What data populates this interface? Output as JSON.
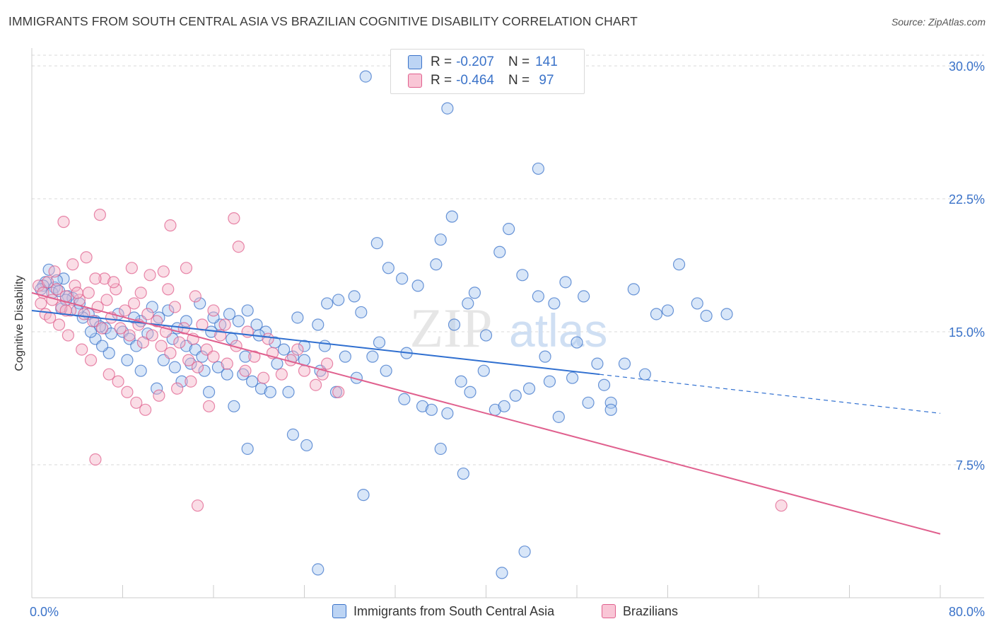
{
  "title": "IMMIGRANTS FROM SOUTH CENTRAL ASIA VS BRAZILIAN COGNITIVE DISABILITY CORRELATION CHART",
  "source": "Source: ZipAtlas.com",
  "watermark": {
    "zip": "ZIP",
    "atlas": "atlas"
  },
  "legend": {
    "rows": [
      {
        "r_label": "R =",
        "r_value": "-0.207",
        "n_label": "N =",
        "n_value": "141"
      },
      {
        "r_label": "R =",
        "r_value": "-0.464",
        "n_label": "N =",
        "n_value": " 97"
      }
    ]
  },
  "colors": {
    "blue": "#3b73c9",
    "blue_fill": "#a9c8f0",
    "blue_line": "#2f6fd0",
    "pink": "#e0608e",
    "pink_fill": "#f5b3c8",
    "pink_line": "#e0608e",
    "grid": "#d9d9d9",
    "axis_text": "#3b73c9"
  },
  "chart_data": {
    "type": "scatter",
    "title": "IMMIGRANTS FROM SOUTH CENTRAL ASIA VS BRAZILIAN COGNITIVE DISABILITY CORRELATION CHART",
    "xlabel": "",
    "ylabel": "Cognitive Disability",
    "xlim": [
      0,
      80
    ],
    "ylim": [
      0,
      31
    ],
    "x_tick_labels": [
      "0.0%",
      "80.0%"
    ],
    "y_ticks": [
      7.5,
      15.0,
      22.5,
      30.0
    ],
    "y_tick_labels": [
      "7.5%",
      "15.0%",
      "22.5%",
      "30.0%"
    ],
    "grid": "horizontal dashed",
    "legend_position": "top-center",
    "series": [
      {
        "name": "Immigrants from South Central Asia",
        "color": "#3b73c9",
        "r": -0.207,
        "n": 141,
        "trend": {
          "x": [
            0,
            50
          ],
          "y": [
            16.2,
            12.6
          ],
          "dashed_to": [
            80,
            10.4
          ]
        },
        "points": [
          [
            1.5,
            18.5
          ],
          [
            1.2,
            17.8
          ],
          [
            2.0,
            17.5
          ],
          [
            2.8,
            18.0
          ],
          [
            1.8,
            17.2
          ],
          [
            3.2,
            17.0
          ],
          [
            1.0,
            17.6
          ],
          [
            2.4,
            17.3
          ],
          [
            3.6,
            16.9
          ],
          [
            4.2,
            16.6
          ],
          [
            2.6,
            16.3
          ],
          [
            5.0,
            16.0
          ],
          [
            4.5,
            15.8
          ],
          [
            5.6,
            15.6
          ],
          [
            6.5,
            15.2
          ],
          [
            7.0,
            14.9
          ],
          [
            6.0,
            15.3
          ],
          [
            8.0,
            15.0
          ],
          [
            8.6,
            14.6
          ],
          [
            9.2,
            14.2
          ],
          [
            9.6,
            15.6
          ],
          [
            10.2,
            14.9
          ],
          [
            11.2,
            15.8
          ],
          [
            12.0,
            16.2
          ],
          [
            12.8,
            15.2
          ],
          [
            13.6,
            14.2
          ],
          [
            14.4,
            14.0
          ],
          [
            15.0,
            13.6
          ],
          [
            15.8,
            15.0
          ],
          [
            16.6,
            15.4
          ],
          [
            17.4,
            16.0
          ],
          [
            18.2,
            15.6
          ],
          [
            19.0,
            16.2
          ],
          [
            19.8,
            15.4
          ],
          [
            20.6,
            15.0
          ],
          [
            21.4,
            14.4
          ],
          [
            22.2,
            14.0
          ],
          [
            23.0,
            13.6
          ],
          [
            24.0,
            14.2
          ],
          [
            25.2,
            15.4
          ],
          [
            26.0,
            16.6
          ],
          [
            27.0,
            16.8
          ],
          [
            28.4,
            17.0
          ],
          [
            29.0,
            16.1
          ],
          [
            30.4,
            20.0
          ],
          [
            31.4,
            18.6
          ],
          [
            32.6,
            18.0
          ],
          [
            34.0,
            17.6
          ],
          [
            35.6,
            18.8
          ],
          [
            36.0,
            20.2
          ],
          [
            37.0,
            21.5
          ],
          [
            38.4,
            16.6
          ],
          [
            39.0,
            17.2
          ],
          [
            41.2,
            19.5
          ],
          [
            42.0,
            20.8
          ],
          [
            43.2,
            18.2
          ],
          [
            44.6,
            17.0
          ],
          [
            46.0,
            16.6
          ],
          [
            47.0,
            17.8
          ],
          [
            48.6,
            17.0
          ],
          [
            49.8,
            13.2
          ],
          [
            50.4,
            12.0
          ],
          [
            51.0,
            11.0
          ],
          [
            53.0,
            17.4
          ],
          [
            55.0,
            16.0
          ],
          [
            56.0,
            16.2
          ],
          [
            57.0,
            18.8
          ],
          [
            58.6,
            16.6
          ],
          [
            59.4,
            15.9
          ],
          [
            61.2,
            16.0
          ],
          [
            29.4,
            29.4
          ],
          [
            36.6,
            27.6
          ],
          [
            44.6,
            24.2
          ],
          [
            5.6,
            14.6
          ],
          [
            6.8,
            13.8
          ],
          [
            8.4,
            13.4
          ],
          [
            9.6,
            12.8
          ],
          [
            11.6,
            13.4
          ],
          [
            12.6,
            13.0
          ],
          [
            14.0,
            13.2
          ],
          [
            15.2,
            12.8
          ],
          [
            16.4,
            13.0
          ],
          [
            17.2,
            12.6
          ],
          [
            18.6,
            12.6
          ],
          [
            19.4,
            12.2
          ],
          [
            20.2,
            11.8
          ],
          [
            21.0,
            11.6
          ],
          [
            22.6,
            11.6
          ],
          [
            24.0,
            13.4
          ],
          [
            25.4,
            12.8
          ],
          [
            26.8,
            11.6
          ],
          [
            28.6,
            12.4
          ],
          [
            30.0,
            13.6
          ],
          [
            31.2,
            12.8
          ],
          [
            32.8,
            11.2
          ],
          [
            34.4,
            10.8
          ],
          [
            35.2,
            10.6
          ],
          [
            36.6,
            10.4
          ],
          [
            37.8,
            12.2
          ],
          [
            38.6,
            11.6
          ],
          [
            39.8,
            12.8
          ],
          [
            40.8,
            10.6
          ],
          [
            41.6,
            10.8
          ],
          [
            42.6,
            11.4
          ],
          [
            43.8,
            11.8
          ],
          [
            45.6,
            12.2
          ],
          [
            46.4,
            10.2
          ],
          [
            47.6,
            12.4
          ],
          [
            49.0,
            11.0
          ],
          [
            51.0,
            10.6
          ],
          [
            11.0,
            11.8
          ],
          [
            13.2,
            12.2
          ],
          [
            15.6,
            11.6
          ],
          [
            17.8,
            10.8
          ],
          [
            19.0,
            8.4
          ],
          [
            23.0,
            9.2
          ],
          [
            24.2,
            8.6
          ],
          [
            29.2,
            5.8
          ],
          [
            36.0,
            8.4
          ],
          [
            38.0,
            7.0
          ],
          [
            25.2,
            1.6
          ],
          [
            41.4,
            1.4
          ],
          [
            43.4,
            2.6
          ],
          [
            3.0,
            16.8
          ],
          [
            4.0,
            16.2
          ],
          [
            5.2,
            15.0
          ],
          [
            6.2,
            14.2
          ],
          [
            7.6,
            16.0
          ],
          [
            9.0,
            15.8
          ],
          [
            10.6,
            16.4
          ],
          [
            12.4,
            14.6
          ],
          [
            13.6,
            15.6
          ],
          [
            14.8,
            16.6
          ],
          [
            16.0,
            15.8
          ],
          [
            17.6,
            14.6
          ],
          [
            18.8,
            13.6
          ],
          [
            20.0,
            14.8
          ],
          [
            21.6,
            13.2
          ],
          [
            23.4,
            15.8
          ],
          [
            25.8,
            14.2
          ],
          [
            27.6,
            13.6
          ],
          [
            30.6,
            14.4
          ],
          [
            33.0,
            13.8
          ],
          [
            37.2,
            15.4
          ],
          [
            40.0,
            14.8
          ],
          [
            45.2,
            13.6
          ],
          [
            48.0,
            14.4
          ],
          [
            52.2,
            13.2
          ],
          [
            54.0,
            12.6
          ],
          [
            2.2,
            17.9
          ],
          [
            0.8,
            17.4
          ]
        ]
      },
      {
        "name": "Brazilians",
        "color": "#e0608e",
        "r": -0.464,
        "n": 97,
        "trend": {
          "x": [
            0,
            80
          ],
          "y": [
            17.2,
            3.6
          ]
        },
        "points": [
          [
            0.6,
            17.6
          ],
          [
            1.0,
            17.2
          ],
          [
            1.4,
            17.8
          ],
          [
            1.8,
            16.8
          ],
          [
            2.2,
            17.4
          ],
          [
            2.6,
            16.4
          ],
          [
            3.0,
            17.0
          ],
          [
            3.4,
            16.2
          ],
          [
            3.8,
            17.6
          ],
          [
            4.2,
            16.8
          ],
          [
            4.6,
            16.0
          ],
          [
            5.0,
            17.2
          ],
          [
            5.4,
            15.6
          ],
          [
            5.8,
            16.4
          ],
          [
            6.2,
            15.2
          ],
          [
            6.6,
            16.8
          ],
          [
            7.0,
            15.8
          ],
          [
            7.4,
            17.4
          ],
          [
            7.8,
            15.2
          ],
          [
            8.2,
            16.2
          ],
          [
            8.6,
            14.8
          ],
          [
            9.0,
            16.6
          ],
          [
            9.4,
            15.4
          ],
          [
            9.8,
            14.4
          ],
          [
            10.2,
            16.0
          ],
          [
            10.6,
            14.8
          ],
          [
            11.0,
            15.6
          ],
          [
            11.4,
            14.2
          ],
          [
            11.8,
            15.0
          ],
          [
            12.2,
            13.8
          ],
          [
            12.6,
            16.4
          ],
          [
            13.0,
            14.4
          ],
          [
            13.4,
            15.2
          ],
          [
            13.8,
            13.4
          ],
          [
            14.2,
            14.6
          ],
          [
            14.6,
            13.0
          ],
          [
            15.0,
            15.4
          ],
          [
            15.4,
            14.0
          ],
          [
            16.0,
            13.6
          ],
          [
            16.6,
            14.8
          ],
          [
            17.2,
            13.2
          ],
          [
            18.0,
            14.2
          ],
          [
            18.8,
            12.8
          ],
          [
            19.6,
            13.6
          ],
          [
            20.4,
            12.4
          ],
          [
            21.2,
            13.8
          ],
          [
            22.0,
            12.6
          ],
          [
            22.8,
            13.4
          ],
          [
            24.0,
            12.8
          ],
          [
            25.0,
            12.0
          ],
          [
            26.0,
            13.2
          ],
          [
            27.0,
            11.6
          ],
          [
            2.8,
            21.2
          ],
          [
            6.0,
            21.6
          ],
          [
            12.2,
            21.0
          ],
          [
            17.8,
            21.4
          ],
          [
            18.2,
            19.8
          ],
          [
            4.8,
            19.2
          ],
          [
            8.8,
            18.6
          ],
          [
            10.4,
            18.2
          ],
          [
            6.4,
            18.0
          ],
          [
            11.6,
            18.4
          ],
          [
            13.6,
            18.6
          ],
          [
            2.0,
            18.4
          ],
          [
            3.6,
            18.8
          ],
          [
            5.6,
            18.0
          ],
          [
            7.2,
            17.8
          ],
          [
            9.6,
            17.2
          ],
          [
            12.0,
            17.4
          ],
          [
            14.4,
            17.0
          ],
          [
            1.2,
            16.0
          ],
          [
            2.4,
            15.4
          ],
          [
            3.2,
            14.8
          ],
          [
            4.4,
            14.0
          ],
          [
            5.2,
            13.4
          ],
          [
            6.8,
            12.6
          ],
          [
            7.6,
            12.2
          ],
          [
            8.4,
            11.6
          ],
          [
            9.2,
            11.0
          ],
          [
            10.0,
            10.6
          ],
          [
            11.2,
            11.4
          ],
          [
            12.8,
            11.8
          ],
          [
            14.0,
            12.2
          ],
          [
            15.6,
            10.8
          ],
          [
            5.6,
            7.8
          ],
          [
            14.6,
            5.2
          ],
          [
            16.0,
            16.2
          ],
          [
            17.0,
            15.4
          ],
          [
            19.0,
            15.0
          ],
          [
            20.8,
            14.6
          ],
          [
            23.4,
            14.0
          ],
          [
            25.6,
            12.6
          ],
          [
            66.0,
            5.2
          ],
          [
            0.8,
            16.6
          ],
          [
            1.6,
            15.8
          ],
          [
            3.0,
            16.2
          ],
          [
            4.0,
            17.2
          ]
        ]
      }
    ]
  },
  "bottom_legend": [
    {
      "label": "Immigrants from South Central Asia"
    },
    {
      "label": "Brazilians"
    }
  ]
}
